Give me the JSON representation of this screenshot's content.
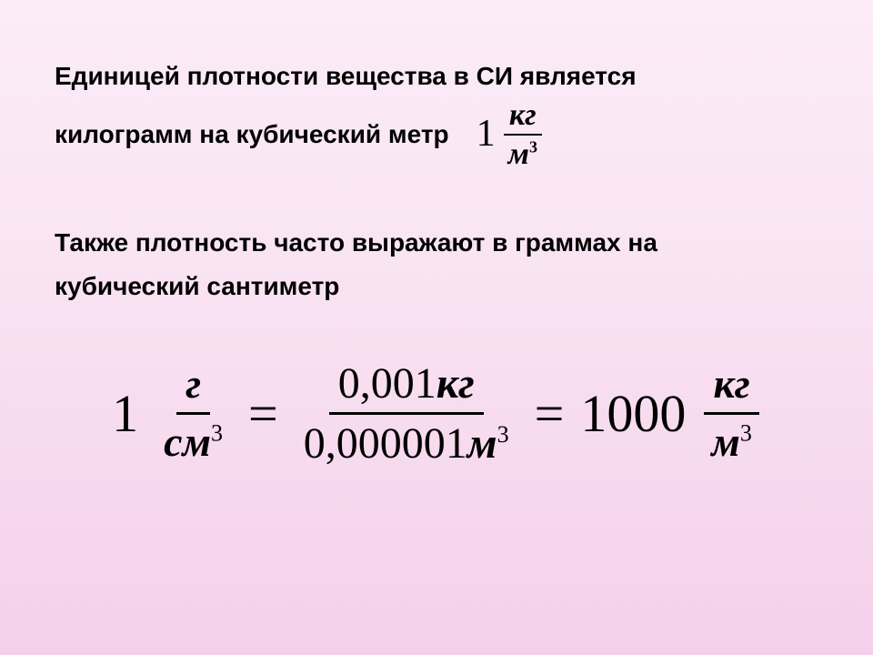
{
  "text": {
    "para1_line1": "Единицей плотности вещества в СИ является",
    "para1_line2": "килограмм на кубический метр",
    "para2_line1": "Также плотность часто выражают в граммах на",
    "para2_line2": "кубический сантиметр"
  },
  "formula_top": {
    "coef": "1",
    "num": "кг",
    "den_var": "м",
    "den_exp": "3"
  },
  "formula_main": {
    "left": {
      "coef": "1",
      "num": "г",
      "den_var": "см",
      "den_exp": "3"
    },
    "eq1": "=",
    "mid": {
      "num_val": "0,001",
      "num_unit": "кг",
      "den_val": "0,000001",
      "den_unit": "м",
      "den_exp": "3"
    },
    "eq2": "=",
    "right": {
      "coef": "1000",
      "num": "кг",
      "den_var": "м",
      "den_exp": "3"
    }
  },
  "style": {
    "bg_gradient_top": "#fbecf7",
    "bg_gradient_bottom": "#f4d0ea",
    "text_color": "#000000",
    "body_fontsize": 28,
    "formula_main_fontsize": 58
  }
}
